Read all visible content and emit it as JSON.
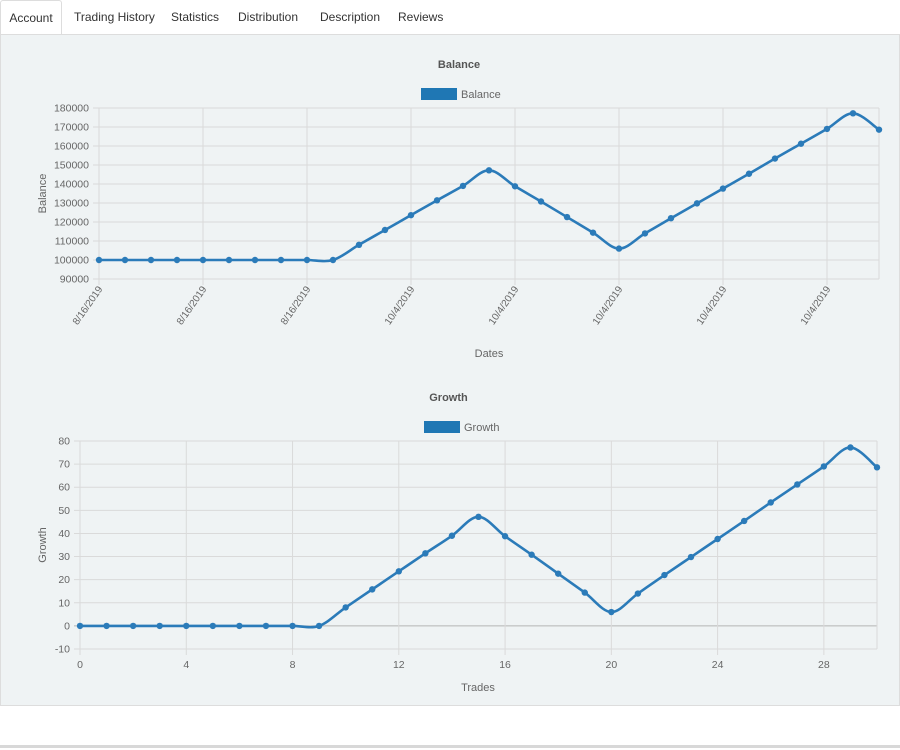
{
  "tabs": [
    {
      "label": "Account",
      "active": true
    },
    {
      "label": "Trading History",
      "active": false
    },
    {
      "label": "Statistics",
      "active": false
    },
    {
      "label": "Distribution",
      "active": false
    },
    {
      "label": "Description",
      "active": false
    },
    {
      "label": "Reviews",
      "active": false
    }
  ],
  "colors": {
    "series": "#2b7bb9",
    "legend_box": "#1f77b4",
    "grid": "#dadada",
    "text": "#666666"
  },
  "chart_data": [
    {
      "type": "line",
      "title": "Balance",
      "legend": [
        "Balance"
      ],
      "legend_position": "top",
      "xlabel": "Dates",
      "ylabel": "Balance",
      "ylim": [
        90000,
        180000
      ],
      "yticks": [
        90000,
        100000,
        110000,
        120000,
        130000,
        140000,
        150000,
        160000,
        170000,
        180000
      ],
      "xtick_labels": [
        "8/16/2019",
        "8/16/2019",
        "8/16/2019",
        "10/4/2019",
        "10/4/2019",
        "10/4/2019",
        "10/4/2019",
        "10/4/2019"
      ],
      "grid": true,
      "series": [
        {
          "name": "Balance",
          "values": [
            100000,
            100000,
            100000,
            100000,
            100000,
            100000,
            100000,
            100000,
            100000,
            100000,
            108000,
            115800,
            123600,
            131400,
            139000,
            147200,
            138800,
            130800,
            122600,
            114400,
            106000,
            114000,
            122000,
            129800,
            137600,
            145400,
            153400,
            161200,
            169000,
            177200,
            168600
          ]
        }
      ]
    },
    {
      "type": "line",
      "title": "Growth",
      "legend": [
        "Growth"
      ],
      "legend_position": "top",
      "xlabel": "Trades",
      "ylabel": "Growth",
      "ylim": [
        -10,
        80
      ],
      "yticks": [
        -10,
        0,
        10,
        20,
        30,
        40,
        50,
        60,
        70,
        80
      ],
      "xlim": [
        0,
        30
      ],
      "xticks": [
        0,
        4,
        8,
        12,
        16,
        20,
        24,
        28
      ],
      "grid": true,
      "series": [
        {
          "name": "Growth",
          "x": [
            0,
            1,
            2,
            3,
            4,
            5,
            6,
            7,
            8,
            9,
            10,
            11,
            12,
            13,
            14,
            15,
            16,
            17,
            18,
            19,
            20,
            21,
            22,
            23,
            24,
            25,
            26,
            27,
            28,
            29,
            30
          ],
          "values": [
            0,
            0,
            0,
            0,
            0,
            0,
            0,
            0,
            0,
            0,
            8,
            15.8,
            23.6,
            31.4,
            39,
            47.2,
            38.8,
            30.8,
            22.6,
            14.4,
            6,
            14,
            22,
            29.8,
            37.6,
            45.4,
            53.4,
            61.2,
            69,
            77.2,
            68.6
          ]
        }
      ]
    }
  ]
}
